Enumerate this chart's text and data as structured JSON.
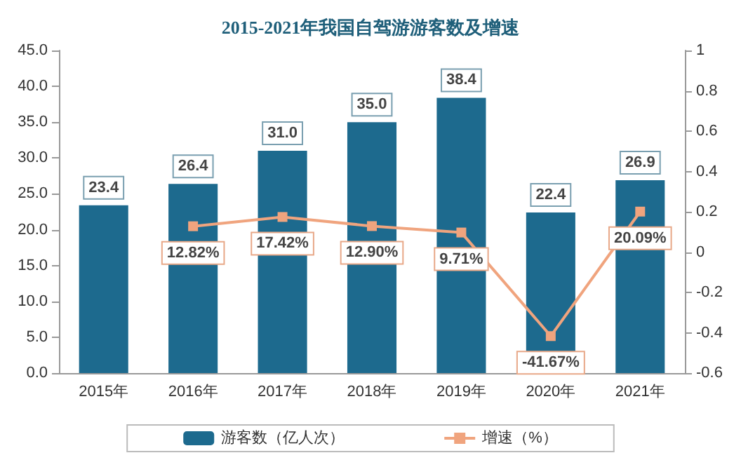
{
  "chart_data": {
    "type": "bar",
    "title": "2015-2021年我国自驾游游客数及增速",
    "categories": [
      "2015年",
      "2016年",
      "2017年",
      "2018年",
      "2019年",
      "2020年",
      "2021年"
    ],
    "series": [
      {
        "name": "游客数（亿人次）",
        "color": "#1d6a8e",
        "values": [
          23.4,
          26.4,
          31.0,
          35.0,
          38.4,
          22.4,
          26.9
        ],
        "value_labels": [
          "23.4",
          "26.4",
          "31.0",
          "35.0",
          "38.4",
          "22.4",
          "26.9"
        ]
      },
      {
        "name": "增速（%）",
        "type": "line",
        "axis": "y2",
        "color": "#f0a47e",
        "marker": "square",
        "values": [
          null,
          0.1282,
          0.1742,
          0.129,
          0.0971,
          -0.4167,
          0.2009
        ],
        "value_labels": [
          null,
          "12.82%",
          "17.42%",
          "12.90%",
          "9.71%",
          "-41.67%",
          "20.09%"
        ]
      }
    ],
    "ylim": [
      0,
      45
    ],
    "yticks": [
      {
        "value": 0,
        "label": "0.0"
      },
      {
        "value": 5,
        "label": "5.0"
      },
      {
        "value": 10,
        "label": "10.0"
      },
      {
        "value": 15,
        "label": "15.0"
      },
      {
        "value": 20,
        "label": "20.0"
      },
      {
        "value": 25,
        "label": "25.0"
      },
      {
        "value": 30,
        "label": "30.0"
      },
      {
        "value": 35,
        "label": "35.0"
      },
      {
        "value": 40,
        "label": "40.0"
      },
      {
        "value": 45,
        "label": "45.0"
      }
    ],
    "y2lim": [
      -0.6,
      1
    ],
    "y2ticks": [
      -0.6,
      -0.4,
      -0.2,
      0,
      0.2,
      0.4,
      0.6,
      0.8,
      1
    ],
    "grid": false,
    "legend": "bottom"
  }
}
